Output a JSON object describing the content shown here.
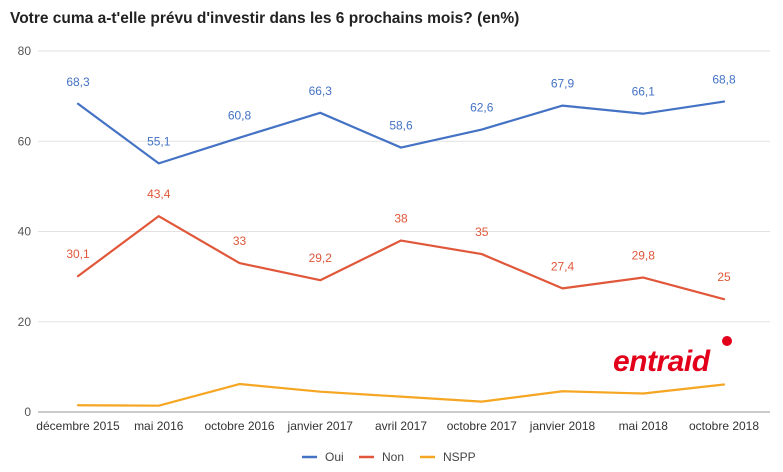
{
  "chart_data": {
    "type": "line",
    "title": "Votre cuma a-t'elle prévu d'investir dans les 6 prochains mois? (en%)",
    "categories": [
      "décembre 2015",
      "mai 2016",
      "octobre 2016",
      "janvier 2017",
      "avril 2017",
      "octobre 2017",
      "janvier 2018",
      "mai 2018",
      "octobre 2018"
    ],
    "ylim": [
      0,
      80
    ],
    "yticks": [
      0,
      20,
      40,
      60,
      80
    ],
    "grid": true,
    "legend_position": "bottom",
    "series": [
      {
        "name": "Oui",
        "color": "#4472c4",
        "values": [
          68.3,
          55.1,
          60.8,
          66.3,
          58.6,
          62.6,
          67.9,
          66.1,
          68.8
        ],
        "labels": [
          "68,3",
          "55,1",
          "60,8",
          "66,3",
          "58,6",
          "62,6",
          "67,9",
          "66,1",
          "68,8"
        ]
      },
      {
        "name": "Non",
        "color": "#e0573a",
        "values": [
          30.1,
          43.4,
          33,
          29.2,
          38,
          35,
          27.4,
          29.8,
          25
        ],
        "labels": [
          "30,1",
          "43,4",
          "33",
          "29,2",
          "38",
          "35",
          "27,4",
          "29,8",
          "25"
        ]
      },
      {
        "name": "NSPP",
        "color": "#f5a623",
        "values": [
          1.5,
          1.4,
          6.2,
          4.5,
          3.4,
          2.3,
          4.6,
          4.1,
          6.1
        ]
      }
    ]
  },
  "logo": {
    "text": "entraid",
    "color": "#e2001a"
  }
}
